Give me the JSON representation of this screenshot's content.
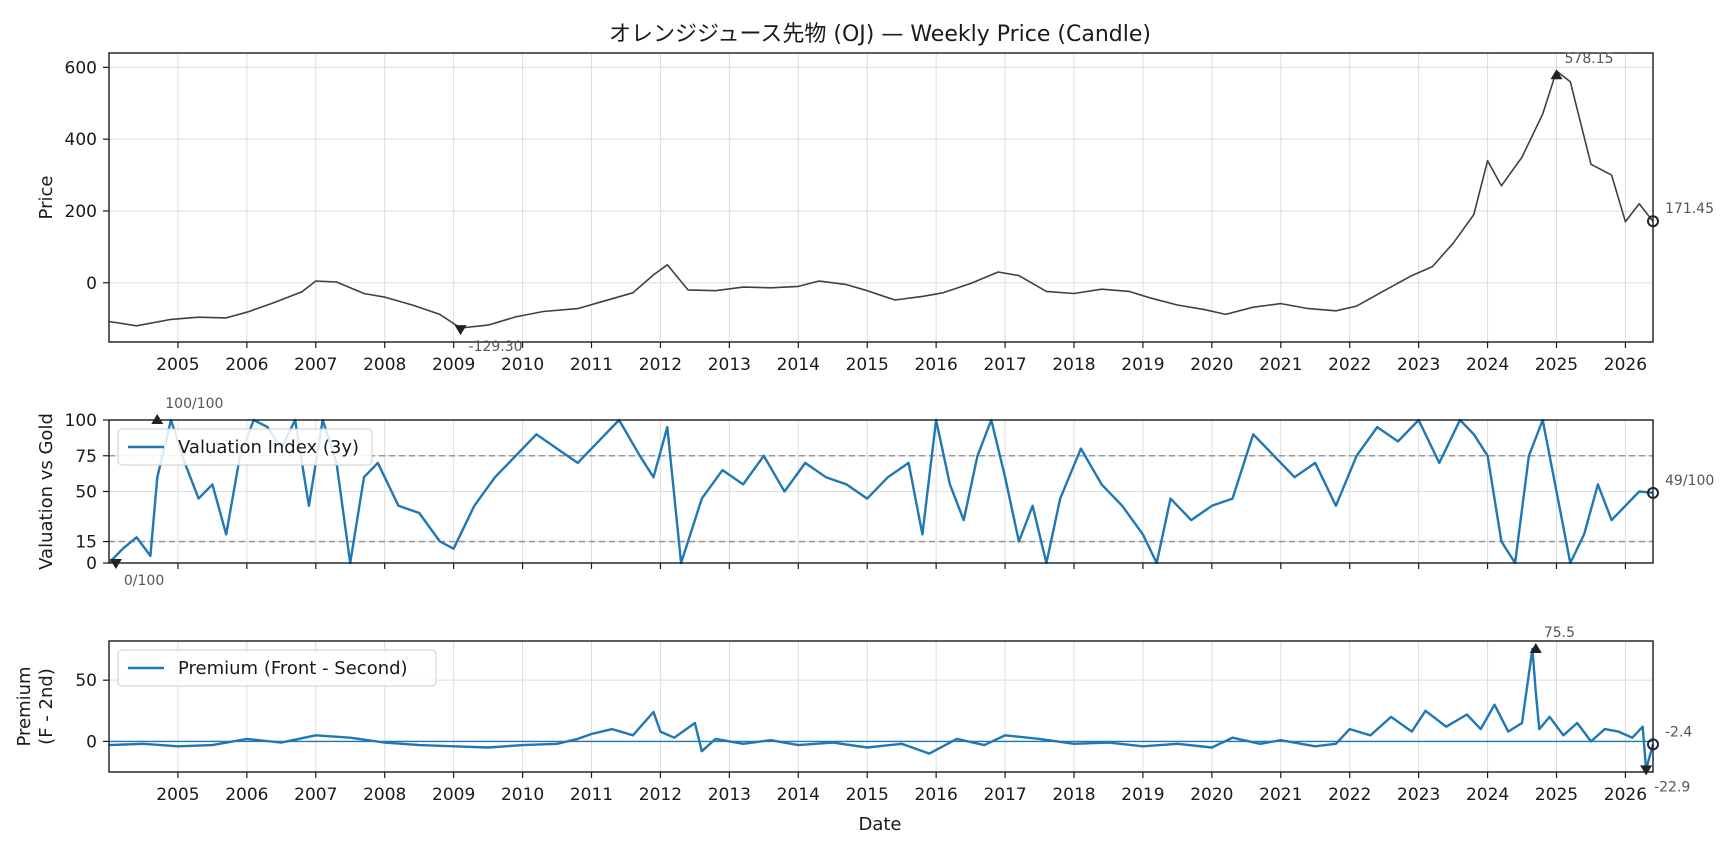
{
  "chart_data": [
    {
      "type": "line",
      "panel": "price",
      "title": "オレンジジュース先物 (OJ) — Weekly Price (Candle)",
      "ylabel": "Price",
      "xlim": [
        2004.0,
        2026.4
      ],
      "ylim": [
        -165,
        640
      ],
      "yticks": [
        0,
        200,
        400,
        600
      ],
      "xticks": [
        2005,
        2006,
        2007,
        2008,
        2009,
        2010,
        2011,
        2012,
        2013,
        2014,
        2015,
        2016,
        2017,
        2018,
        2019,
        2020,
        2021,
        2022,
        2023,
        2024,
        2025,
        2026
      ],
      "grid": true,
      "color": "#404040",
      "series": [
        {
          "x": [
            2004.0,
            2004.4,
            2004.9,
            2005.3,
            2005.7,
            2006.0,
            2006.4,
            2006.8,
            2007.0,
            2007.3,
            2007.7,
            2008.0,
            2008.4,
            2008.8,
            2009.1,
            2009.5,
            2009.9,
            2010.3,
            2010.8,
            2011.2,
            2011.6,
            2011.9,
            2012.1,
            2012.4,
            2012.8,
            2013.2,
            2013.6,
            2014.0,
            2014.3,
            2014.7,
            2015.0,
            2015.4,
            2015.8,
            2016.1,
            2016.5,
            2016.9,
            2017.2,
            2017.6,
            2018.0,
            2018.4,
            2018.8,
            2019.1,
            2019.5,
            2019.9,
            2020.2,
            2020.6,
            2021.0,
            2021.4,
            2021.8,
            2022.1,
            2022.5,
            2022.9,
            2023.2,
            2023.5,
            2023.8,
            2024.0,
            2024.2,
            2024.5,
            2024.8,
            2025.0,
            2025.2,
            2025.5,
            2025.8,
            2026.0,
            2026.2,
            2026.4
          ],
          "y": [
            -108,
            -120,
            -102,
            -96,
            -98,
            -82,
            -55,
            -25,
            5,
            2,
            -30,
            -40,
            -62,
            -88,
            -126,
            -118,
            -95,
            -80,
            -72,
            -50,
            -28,
            22,
            50,
            -20,
            -22,
            -12,
            -14,
            -10,
            5,
            -5,
            -22,
            -48,
            -38,
            -28,
            -2,
            30,
            20,
            -24,
            -30,
            -18,
            -24,
            -42,
            -62,
            -75,
            -88,
            -68,
            -58,
            -72,
            -78,
            -65,
            -22,
            20,
            45,
            110,
            190,
            340,
            270,
            350,
            470,
            590,
            560,
            330,
            300,
            170,
            220,
            171
          ]
        }
      ],
      "annotations": [
        {
          "label": "578.15",
          "x": 2025.0,
          "y": 578.15,
          "kind": "max"
        },
        {
          "label": "-129.30",
          "x": 2009.1,
          "y": -129.3,
          "kind": "min"
        },
        {
          "label": "171.45",
          "x": 2026.4,
          "y": 171.45,
          "kind": "last"
        }
      ]
    },
    {
      "type": "line",
      "panel": "valuation",
      "ylabel": "Valuation vs Gold",
      "xlim": [
        2004.0,
        2026.4
      ],
      "ylim": [
        0,
        100
      ],
      "yticks": [
        0,
        15,
        50,
        75,
        100
      ],
      "reference_lines": [
        15,
        75
      ],
      "legend": {
        "label": "Valuation Index (3y)",
        "placement": "upper-left"
      },
      "grid": true,
      "color": "#1f77b4",
      "series": [
        {
          "name": "Valuation Index (3y)",
          "x": [
            2004.0,
            2004.2,
            2004.4,
            2004.6,
            2004.7,
            2004.9,
            2005.1,
            2005.3,
            2005.5,
            2005.7,
            2005.9,
            2006.1,
            2006.3,
            2006.5,
            2006.7,
            2006.9,
            2007.1,
            2007.3,
            2007.5,
            2007.7,
            2007.9,
            2008.2,
            2008.5,
            2008.8,
            2009.0,
            2009.3,
            2009.6,
            2009.9,
            2010.2,
            2010.5,
            2010.8,
            2011.1,
            2011.4,
            2011.7,
            2011.9,
            2012.1,
            2012.3,
            2012.6,
            2012.9,
            2013.2,
            2013.5,
            2013.8,
            2014.1,
            2014.4,
            2014.7,
            2015.0,
            2015.3,
            2015.6,
            2015.8,
            2016.0,
            2016.2,
            2016.4,
            2016.6,
            2016.8,
            2017.0,
            2017.2,
            2017.4,
            2017.6,
            2017.8,
            2018.1,
            2018.4,
            2018.7,
            2019.0,
            2019.2,
            2019.4,
            2019.7,
            2020.0,
            2020.3,
            2020.6,
            2020.9,
            2021.2,
            2021.5,
            2021.8,
            2022.1,
            2022.4,
            2022.7,
            2023.0,
            2023.3,
            2023.6,
            2023.8,
            2024.0,
            2024.2,
            2024.4,
            2024.6,
            2024.8,
            2025.0,
            2025.2,
            2025.4,
            2025.6,
            2025.8,
            2026.0,
            2026.2,
            2026.4
          ],
          "y": [
            0,
            10,
            18,
            5,
            60,
            100,
            70,
            45,
            55,
            20,
            75,
            100,
            95,
            80,
            100,
            40,
            100,
            70,
            0,
            60,
            70,
            40,
            35,
            15,
            10,
            40,
            60,
            75,
            90,
            80,
            70,
            85,
            100,
            75,
            60,
            95,
            0,
            45,
            65,
            55,
            75,
            50,
            70,
            60,
            55,
            45,
            60,
            70,
            20,
            100,
            55,
            30,
            75,
            100,
            60,
            15,
            40,
            0,
            45,
            80,
            55,
            40,
            20,
            0,
            45,
            30,
            40,
            45,
            90,
            75,
            60,
            70,
            40,
            75,
            95,
            85,
            100,
            70,
            100,
            90,
            75,
            15,
            0,
            75,
            100,
            50,
            0,
            20,
            55,
            30,
            40,
            50,
            49
          ]
        }
      ],
      "annotations": [
        {
          "label": "100/100",
          "x": 2004.7,
          "y": 100,
          "kind": "max"
        },
        {
          "label": "0/100",
          "x": 2004.1,
          "y": 0,
          "kind": "min"
        },
        {
          "label": "49/100",
          "x": 2026.4,
          "y": 49,
          "kind": "last"
        }
      ]
    },
    {
      "type": "line",
      "panel": "premium",
      "ylabel": "Premium\n(F - 2nd)",
      "xlabel": "Date",
      "xlim": [
        2004.0,
        2026.4
      ],
      "ylim": [
        -25,
        82
      ],
      "yticks": [
        0,
        50
      ],
      "xticks": [
        2005,
        2006,
        2007,
        2008,
        2009,
        2010,
        2011,
        2012,
        2013,
        2014,
        2015,
        2016,
        2017,
        2018,
        2019,
        2020,
        2021,
        2022,
        2023,
        2024,
        2025,
        2026
      ],
      "legend": {
        "label": "Premium (Front - Second)",
        "placement": "upper-left"
      },
      "grid": true,
      "color": "#1f77b4",
      "series": [
        {
          "name": "Premium (Front - Second)",
          "x": [
            2004.0,
            2004.5,
            2005.0,
            2005.5,
            2006.0,
            2006.5,
            2007.0,
            2007.5,
            2008.0,
            2008.5,
            2009.0,
            2009.5,
            2010.0,
            2010.5,
            2010.8,
            2011.0,
            2011.3,
            2011.6,
            2011.9,
            2012.0,
            2012.2,
            2012.5,
            2012.6,
            2012.8,
            2013.2,
            2013.6,
            2014.0,
            2014.5,
            2015.0,
            2015.5,
            2015.9,
            2016.3,
            2016.7,
            2017.0,
            2017.5,
            2018.0,
            2018.5,
            2019.0,
            2019.5,
            2020.0,
            2020.3,
            2020.7,
            2021.0,
            2021.5,
            2021.8,
            2022.0,
            2022.3,
            2022.6,
            2022.9,
            2023.1,
            2023.4,
            2023.7,
            2023.9,
            2024.1,
            2024.3,
            2024.5,
            2024.65,
            2024.7,
            2024.75,
            2024.9,
            2025.1,
            2025.3,
            2025.5,
            2025.7,
            2025.9,
            2026.1,
            2026.25,
            2026.3,
            2026.4
          ],
          "y": [
            -3,
            -2,
            -4,
            -3,
            2,
            -1,
            5,
            3,
            -1,
            -3,
            -4,
            -5,
            -3,
            -2,
            2,
            6,
            10,
            5,
            24,
            8,
            3,
            15,
            -8,
            2,
            -2,
            1,
            -3,
            -1,
            -5,
            -2,
            -10,
            2,
            -3,
            5,
            2,
            -2,
            -1,
            -4,
            -2,
            -5,
            3,
            -2,
            1,
            -4,
            -2,
            10,
            5,
            20,
            8,
            25,
            12,
            22,
            10,
            30,
            8,
            15,
            75.5,
            40,
            10,
            20,
            5,
            15,
            0,
            10,
            8,
            3,
            12,
            -22.9,
            -2.4
          ]
        }
      ],
      "annotations": [
        {
          "label": "75.5",
          "x": 2024.7,
          "y": 75.5,
          "kind": "max"
        },
        {
          "label": "-22.9",
          "x": 2026.3,
          "y": -22.9,
          "kind": "min"
        },
        {
          "label": "-2.4",
          "x": 2026.4,
          "y": -2.4,
          "kind": "last"
        }
      ]
    }
  ]
}
